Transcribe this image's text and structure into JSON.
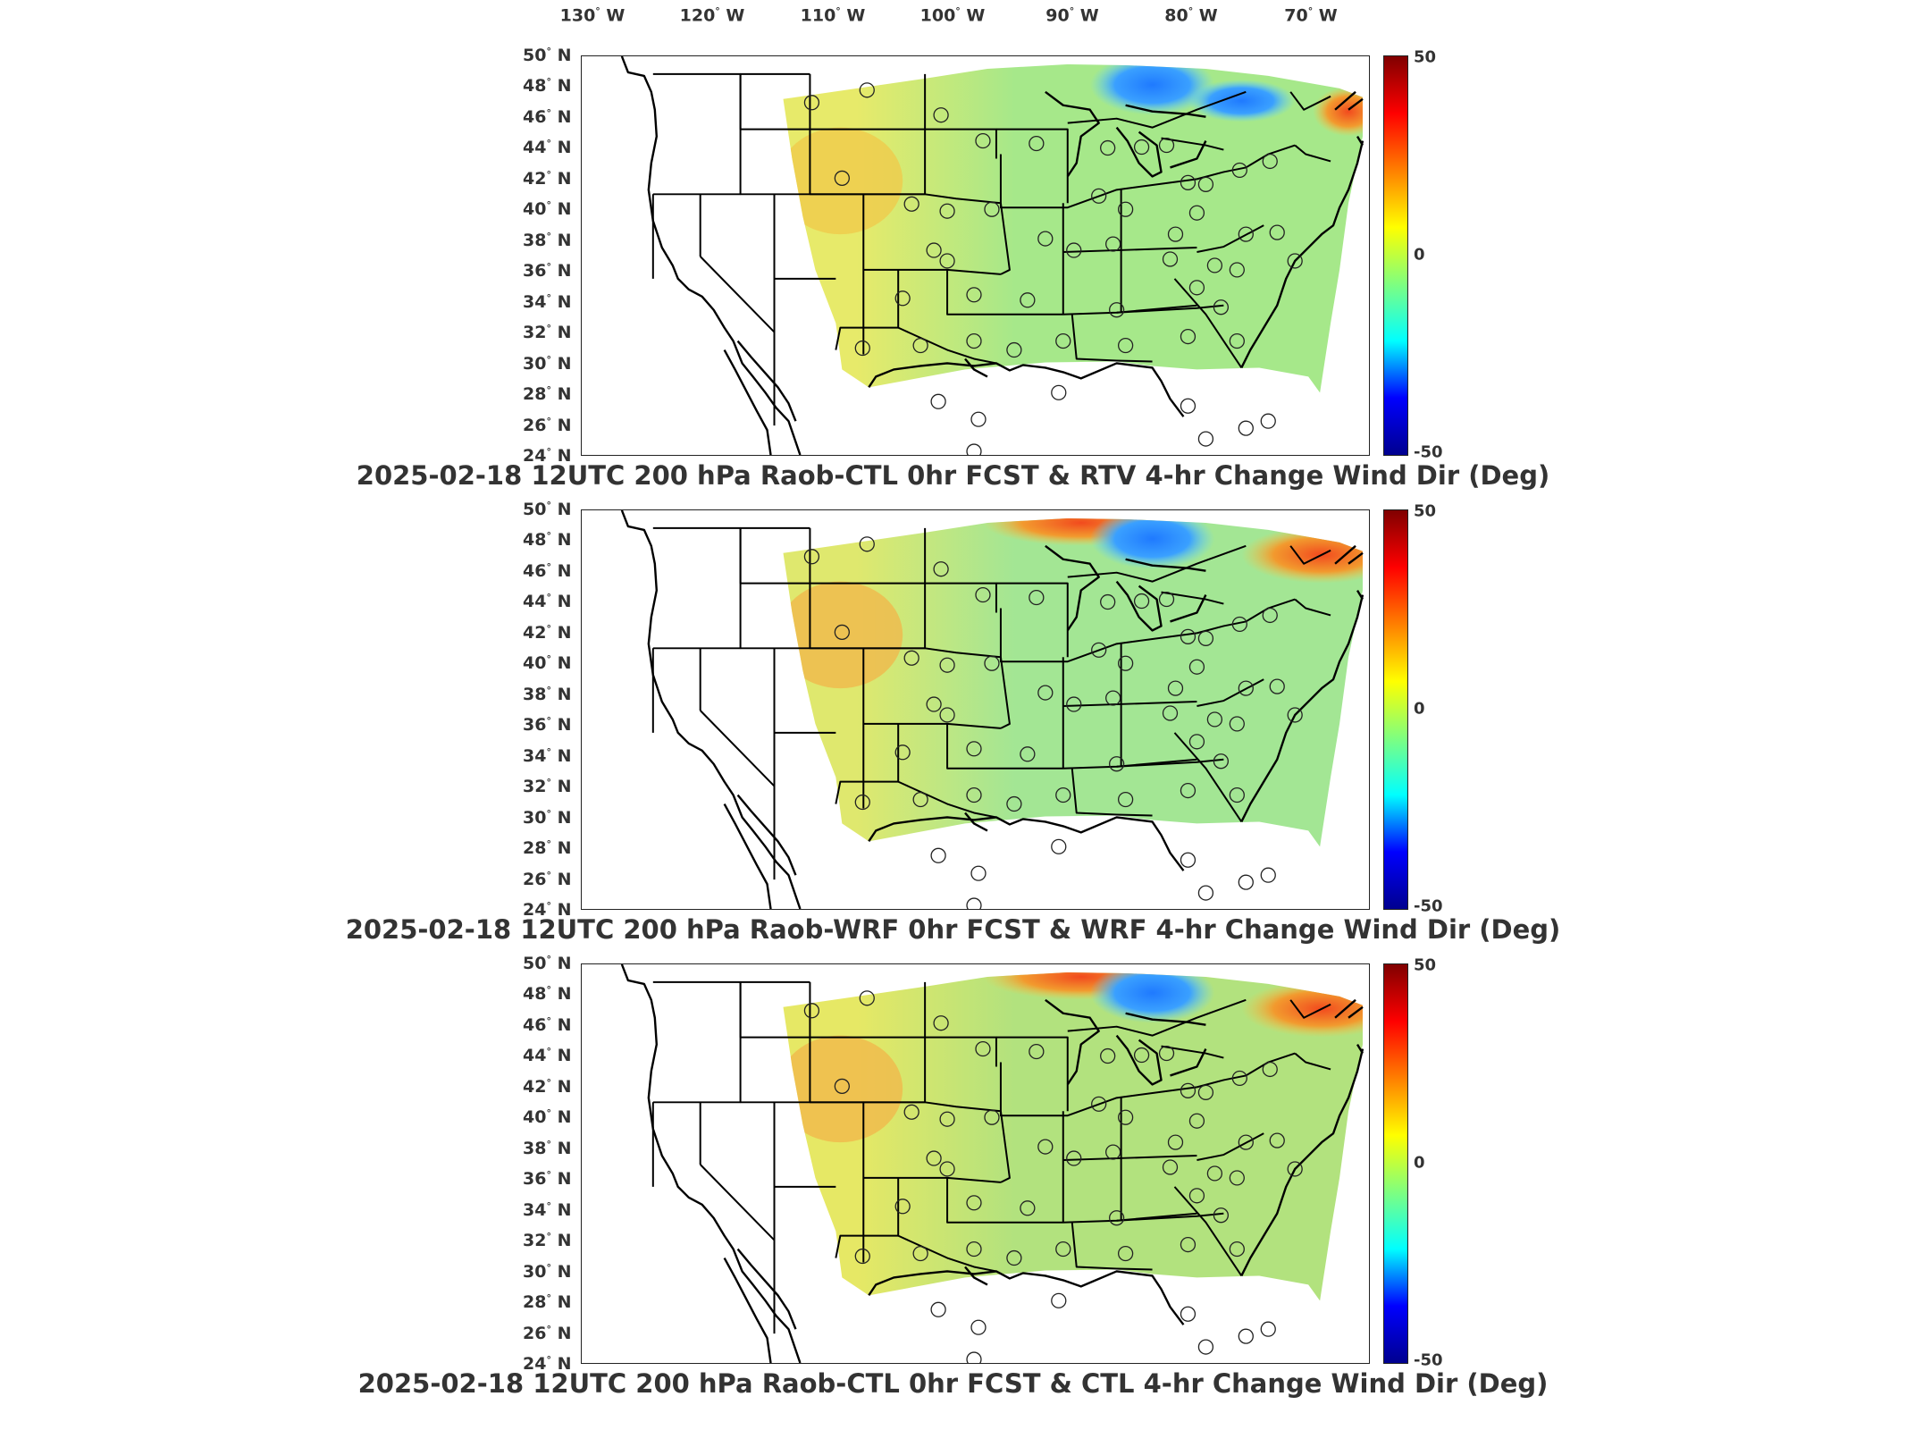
{
  "lon_labels": [
    {
      "deg": "130",
      "dir": "W"
    },
    {
      "deg": "120",
      "dir": "W"
    },
    {
      "deg": "110",
      "dir": "W"
    },
    {
      "deg": "100",
      "dir": "W"
    },
    {
      "deg": "90",
      "dir": "W"
    },
    {
      "deg": "80",
      "dir": "W"
    },
    {
      "deg": "70",
      "dir": "W"
    }
  ],
  "lat_labels": [
    {
      "deg": "50",
      "dir": "N"
    },
    {
      "deg": "48",
      "dir": "N"
    },
    {
      "deg": "46",
      "dir": "N"
    },
    {
      "deg": "44",
      "dir": "N"
    },
    {
      "deg": "42",
      "dir": "N"
    },
    {
      "deg": "40",
      "dir": "N"
    },
    {
      "deg": "38",
      "dir": "N"
    },
    {
      "deg": "36",
      "dir": "N"
    },
    {
      "deg": "34",
      "dir": "N"
    },
    {
      "deg": "32",
      "dir": "N"
    },
    {
      "deg": "30",
      "dir": "N"
    },
    {
      "deg": "28",
      "dir": "N"
    },
    {
      "deg": "26",
      "dir": "N"
    },
    {
      "deg": "24",
      "dir": "N"
    }
  ],
  "colorbar": {
    "ticks": [
      "50",
      "0",
      "-50"
    ],
    "range": [
      -50,
      50
    ],
    "colors": [
      "#00008f",
      "#0000ff",
      "#00ffff",
      "#7fff7f",
      "#ffff00",
      "#ff7f00",
      "#ff0000",
      "#800000"
    ]
  },
  "panels": [
    {
      "title": "2025-02-18 12UTC 200 hPa Raob-CTL 0hr FCST & RTV 4-hr Change Wind Dir (Deg)",
      "field_base": "#a6e88a",
      "field_west": "#e7ea6a",
      "field_wy_hot": "#f0c84a",
      "ne_anomaly": "blue-cyan",
      "hot_band": false
    },
    {
      "title": "2025-02-18 12UTC 200 hPa Raob-WRF 0hr FCST & WRF 4-hr Change Wind Dir (Deg)",
      "field_base": "#a3e694",
      "field_west": "#dfe86e",
      "field_wy_hot": "#f2b64a",
      "ne_anomaly": "blue",
      "hot_band": true
    },
    {
      "title": "2025-02-18 12UTC 200 hPa Raob-CTL 0hr FCST & CTL 4-hr Change Wind Dir (Deg)",
      "field_base": "#b2e27e",
      "field_west": "#e6e865",
      "field_wy_hot": "#f2b64a",
      "ne_anomaly": "blue",
      "hot_band": true
    }
  ]
}
